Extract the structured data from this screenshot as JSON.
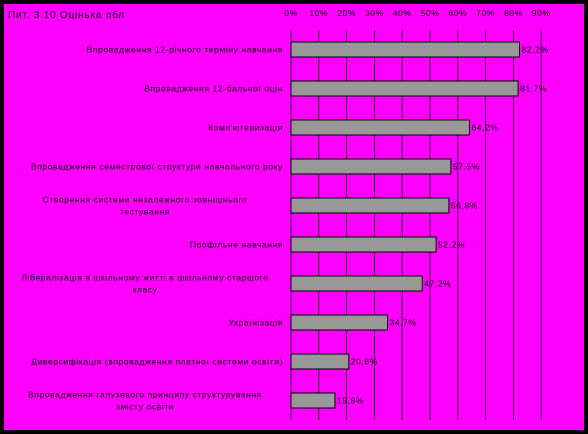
{
  "colors": {
    "background": "#ff00ff",
    "bar_fill": "#999999",
    "bar_stroke": "#000000",
    "frame": "#000000"
  },
  "chart_data": {
    "type": "bar",
    "orientation": "horizontal",
    "title": "Пит. 3.10 Оцінька обл",
    "xlim": [
      0,
      90
    ],
    "x_ticks": [
      "0%",
      "10%",
      "20%",
      "30%",
      "40%",
      "50%",
      "60%",
      "70%",
      "80%",
      "90%"
    ],
    "grid": true,
    "categories": [
      [
        "Впровадження 12-річного терміну навчання"
      ],
      [
        "Впровадження 12-бальної оцін"
      ],
      [
        "Комп'ютеризація"
      ],
      [
        "Впровадження семестрової структури навчального року"
      ],
      [
        "Створення системи незалежного зовнішнього",
        "тестування"
      ],
      [
        "Профільне навчання"
      ],
      [
        "Лібералізація в шкільному житті в шкільному старшого",
        "класу"
      ],
      [
        "Українізація"
      ],
      [
        "Диверсифікація (впровадження платної системи освіти)"
      ],
      [
        "Впровадження галузевого принципу структурування",
        "змісту освіти"
      ]
    ],
    "values": [
      82.2,
      81.7,
      64.2,
      57.5,
      56.8,
      52.2,
      47.2,
      34.7,
      20.8,
      15.8
    ],
    "value_labels": [
      "82,2%",
      "81,7%",
      "64,2%",
      "57,5%",
      "56,8%",
      "52,2%",
      "47,2%",
      "34,7%",
      "20,8%",
      "15,8%"
    ]
  }
}
